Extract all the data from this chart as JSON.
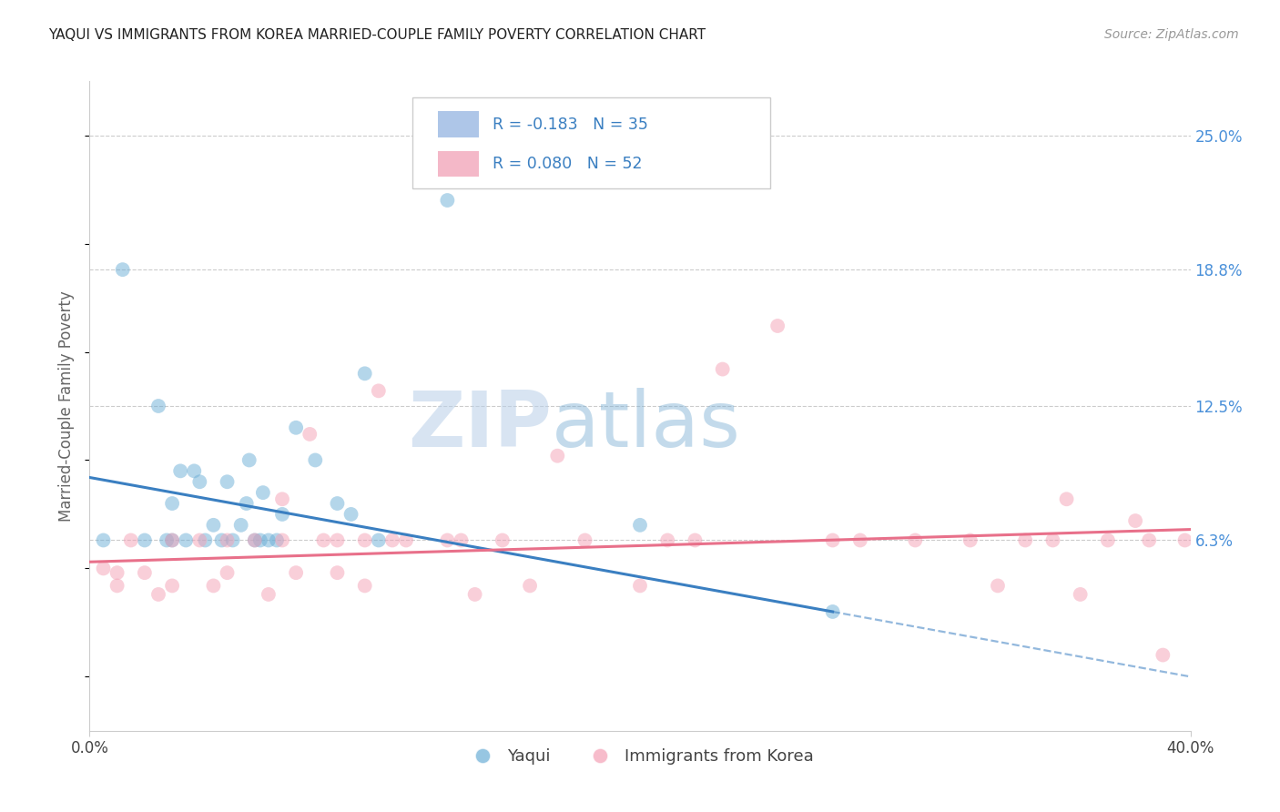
{
  "title": "YAQUI VS IMMIGRANTS FROM KOREA MARRIED-COUPLE FAMILY POVERTY CORRELATION CHART",
  "source": "Source: ZipAtlas.com",
  "ylabel": "Married-Couple Family Poverty",
  "ytick_labels": [
    "25.0%",
    "18.8%",
    "12.5%",
    "6.3%"
  ],
  "ytick_values": [
    0.25,
    0.188,
    0.125,
    0.063
  ],
  "xlim": [
    0.0,
    0.4
  ],
  "ylim": [
    -0.025,
    0.275
  ],
  "legend1_label": "R = -0.183   N = 35",
  "legend2_label": "R = 0.080   N = 52",
  "legend1_color": "#aec6e8",
  "legend2_color": "#f4b8c8",
  "series1_name": "Yaqui",
  "series2_name": "Immigrants from Korea",
  "series1_color": "#6baed6",
  "series2_color": "#f4a0b5",
  "line1_color": "#3a7fc1",
  "line2_color": "#e8708a",
  "line1_x0": 0.0,
  "line1_y0": 0.092,
  "line1_x1": 0.27,
  "line1_y1": 0.03,
  "line1_dash_x0": 0.27,
  "line1_dash_y0": 0.03,
  "line1_dash_x1": 0.4,
  "line1_dash_y1": 0.0,
  "line2_x0": 0.0,
  "line2_y0": 0.053,
  "line2_x1": 0.4,
  "line2_y1": 0.068,
  "watermark_zip": "ZIP",
  "watermark_atlas": "atlas",
  "yaqui_x": [
    0.005,
    0.012,
    0.02,
    0.025,
    0.028,
    0.03,
    0.03,
    0.033,
    0.035,
    0.038,
    0.04,
    0.042,
    0.045,
    0.048,
    0.05,
    0.052,
    0.055,
    0.057,
    0.058,
    0.06,
    0.062,
    0.063,
    0.065,
    0.068,
    0.07,
    0.075,
    0.082,
    0.09,
    0.095,
    0.1,
    0.105,
    0.13,
    0.18,
    0.2,
    0.27
  ],
  "yaqui_y": [
    0.063,
    0.188,
    0.063,
    0.125,
    0.063,
    0.063,
    0.08,
    0.095,
    0.063,
    0.095,
    0.09,
    0.063,
    0.07,
    0.063,
    0.09,
    0.063,
    0.07,
    0.08,
    0.1,
    0.063,
    0.063,
    0.085,
    0.063,
    0.063,
    0.075,
    0.115,
    0.1,
    0.08,
    0.075,
    0.14,
    0.063,
    0.22,
    0.25,
    0.07,
    0.03
  ],
  "korea_x": [
    0.005,
    0.01,
    0.01,
    0.015,
    0.02,
    0.025,
    0.03,
    0.03,
    0.04,
    0.045,
    0.05,
    0.05,
    0.06,
    0.065,
    0.07,
    0.07,
    0.075,
    0.08,
    0.085,
    0.09,
    0.09,
    0.1,
    0.1,
    0.105,
    0.11,
    0.115,
    0.13,
    0.135,
    0.14,
    0.15,
    0.16,
    0.17,
    0.18,
    0.2,
    0.21,
    0.22,
    0.23,
    0.25,
    0.27,
    0.28,
    0.3,
    0.32,
    0.33,
    0.34,
    0.35,
    0.355,
    0.36,
    0.37,
    0.38,
    0.385,
    0.39,
    0.398
  ],
  "korea_y": [
    0.05,
    0.042,
    0.048,
    0.063,
    0.048,
    0.038,
    0.063,
    0.042,
    0.063,
    0.042,
    0.063,
    0.048,
    0.063,
    0.038,
    0.082,
    0.063,
    0.048,
    0.112,
    0.063,
    0.048,
    0.063,
    0.063,
    0.042,
    0.132,
    0.063,
    0.063,
    0.063,
    0.063,
    0.038,
    0.063,
    0.042,
    0.102,
    0.063,
    0.042,
    0.063,
    0.063,
    0.142,
    0.162,
    0.063,
    0.063,
    0.063,
    0.063,
    0.042,
    0.063,
    0.063,
    0.082,
    0.038,
    0.063,
    0.072,
    0.063,
    0.01,
    0.063
  ]
}
